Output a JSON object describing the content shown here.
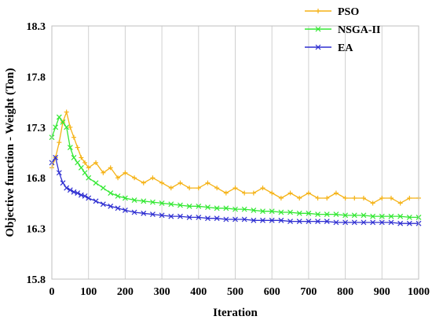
{
  "chart_data": {
    "type": "line",
    "title": "",
    "xlabel": "Iteration",
    "ylabel": "Objective function - Weight (Ton)",
    "xlim": [
      0,
      1000
    ],
    "ylim": [
      15.8,
      18.3
    ],
    "x_ticks": [
      0,
      100,
      200,
      300,
      400,
      500,
      600,
      700,
      800,
      900,
      1000
    ],
    "y_ticks": [
      15.8,
      16.3,
      16.8,
      17.3,
      17.8,
      18.3
    ],
    "x_tick_labels": [
      "0",
      "100",
      "200",
      "300",
      "400",
      "500",
      "600",
      "700",
      "800",
      "900",
      "1000"
    ],
    "y_tick_labels": [
      "15.8",
      "16.3",
      "16.8",
      "17.3",
      "17.8",
      "18.3"
    ],
    "grid": "vertical",
    "legend_position": "top-right",
    "series": [
      {
        "name": "PSO",
        "color": "#F5B215",
        "marker": "plus",
        "x": [
          0,
          10,
          20,
          30,
          40,
          50,
          60,
          70,
          80,
          90,
          100,
          120,
          140,
          160,
          180,
          200,
          225,
          250,
          275,
          300,
          325,
          350,
          375,
          400,
          425,
          450,
          475,
          500,
          525,
          550,
          575,
          600,
          625,
          650,
          675,
          700,
          725,
          750,
          775,
          800,
          825,
          850,
          875,
          900,
          925,
          950,
          975,
          1000
        ],
        "y": [
          16.9,
          17.0,
          17.15,
          17.35,
          17.45,
          17.3,
          17.2,
          17.1,
          17.0,
          16.95,
          16.9,
          16.95,
          16.85,
          16.9,
          16.8,
          16.85,
          16.8,
          16.75,
          16.8,
          16.75,
          16.7,
          16.75,
          16.7,
          16.7,
          16.75,
          16.7,
          16.65,
          16.7,
          16.65,
          16.65,
          16.7,
          16.65,
          16.6,
          16.65,
          16.6,
          16.65,
          16.6,
          16.6,
          16.65,
          16.6,
          16.6,
          16.6,
          16.55,
          16.6,
          16.6,
          16.55,
          16.6,
          16.6
        ]
      },
      {
        "name": "NSGA-II",
        "color": "#33E833",
        "marker": "x",
        "x": [
          0,
          10,
          20,
          30,
          40,
          50,
          60,
          70,
          80,
          90,
          100,
          120,
          140,
          160,
          180,
          200,
          225,
          250,
          275,
          300,
          325,
          350,
          375,
          400,
          425,
          450,
          475,
          500,
          525,
          550,
          575,
          600,
          625,
          650,
          675,
          700,
          725,
          750,
          775,
          800,
          825,
          850,
          875,
          900,
          925,
          950,
          975,
          1000
        ],
        "y": [
          17.2,
          17.3,
          17.4,
          17.35,
          17.3,
          17.1,
          17.0,
          16.95,
          16.9,
          16.85,
          16.8,
          16.75,
          16.7,
          16.65,
          16.62,
          16.6,
          16.58,
          16.57,
          16.56,
          16.55,
          16.54,
          16.53,
          16.52,
          16.52,
          16.51,
          16.5,
          16.5,
          16.49,
          16.49,
          16.48,
          16.47,
          16.47,
          16.46,
          16.46,
          16.45,
          16.45,
          16.44,
          16.44,
          16.44,
          16.43,
          16.43,
          16.43,
          16.42,
          16.42,
          16.42,
          16.42,
          16.41,
          16.41
        ]
      },
      {
        "name": "EA",
        "color": "#2E2ED1",
        "marker": "x",
        "x": [
          0,
          10,
          20,
          30,
          40,
          50,
          60,
          70,
          80,
          90,
          100,
          120,
          140,
          160,
          180,
          200,
          225,
          250,
          275,
          300,
          325,
          350,
          375,
          400,
          425,
          450,
          475,
          500,
          525,
          550,
          575,
          600,
          625,
          650,
          675,
          700,
          725,
          750,
          775,
          800,
          825,
          850,
          875,
          900,
          925,
          950,
          975,
          1000
        ],
        "y": [
          16.95,
          17.0,
          16.85,
          16.75,
          16.7,
          16.68,
          16.66,
          16.65,
          16.63,
          16.62,
          16.6,
          16.57,
          16.54,
          16.52,
          16.5,
          16.48,
          16.46,
          16.45,
          16.44,
          16.43,
          16.42,
          16.42,
          16.41,
          16.41,
          16.4,
          16.4,
          16.39,
          16.39,
          16.39,
          16.38,
          16.38,
          16.38,
          16.38,
          16.37,
          16.37,
          16.37,
          16.37,
          16.37,
          16.36,
          16.36,
          16.36,
          16.36,
          16.36,
          16.36,
          16.36,
          16.35,
          16.35,
          16.35
        ]
      }
    ]
  }
}
